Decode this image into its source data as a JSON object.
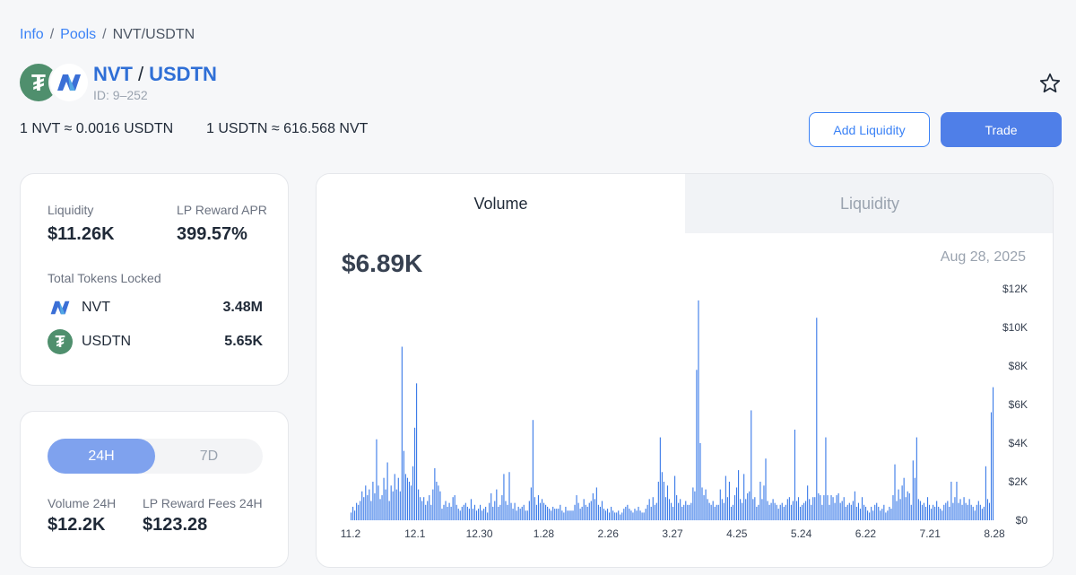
{
  "breadcrumb": {
    "info": "Info",
    "pools": "Pools",
    "current": "NVT/USDTN",
    "sep": "/"
  },
  "pair": {
    "base": "NVT",
    "quote": "USDTN",
    "slash": "/",
    "id": "ID: 9–252"
  },
  "rates": {
    "nvt_to_usdtn": "1 NVT ≈ 0.0016 USDTN",
    "usdtn_to_nvt": "1 USDTN ≈ 616.568 NVT"
  },
  "actions": {
    "add_liquidity": "Add Liquidity",
    "trade": "Trade"
  },
  "stats": {
    "liquidity_label": "Liquidity",
    "liquidity_value": "$11.26K",
    "apr_label": "LP Reward APR",
    "apr_value": "399.57%",
    "locked_label": "Total Tokens Locked",
    "tokens": [
      {
        "name": "NVT",
        "amount": "3.48M",
        "icon": "nvt-icon"
      },
      {
        "name": "USDTN",
        "amount": "5.65K",
        "icon": "usdtn-icon"
      }
    ]
  },
  "period": {
    "options": [
      "24H",
      "7D"
    ],
    "selected": "24H"
  },
  "fees": {
    "volume_label": "Volume 24H",
    "volume_value": "$12.2K",
    "fees_label": "LP Reward Fees 24H",
    "fees_value": "$123.28"
  },
  "chart_tabs": {
    "volume": "Volume",
    "liquidity": "Liquidity",
    "active": "Volume"
  },
  "colors": {
    "accent": "#3b82f6",
    "bar": "#3b7be8",
    "brand_green": "#4f8f6d"
  },
  "chart_data": {
    "type": "bar",
    "title": "Volume",
    "current_value": "$6.89K",
    "current_date": "Aug 28, 2025",
    "ylim": [
      0,
      12000
    ],
    "y_ticks": [
      "$0",
      "$2K",
      "$4K",
      "$6K",
      "$8K",
      "$10K",
      "$12K"
    ],
    "x_ticks": [
      "11.2",
      "12.1",
      "12.30",
      "1.28",
      "2.26",
      "3.27",
      "4.25",
      "5.24",
      "6.22",
      "7.21",
      "8.28"
    ],
    "values": [
      400,
      700,
      500,
      900,
      800,
      1000,
      1500,
      1200,
      1800,
      1300,
      1600,
      1000,
      2000,
      1400,
      4200,
      1800,
      1100,
      1300,
      2200,
      1600,
      3000,
      1000,
      1800,
      1500,
      2400,
      1600,
      2200,
      1500,
      9000,
      3600,
      2400,
      2200,
      2000,
      1800,
      2800,
      4800,
      7100,
      1600,
      1200,
      1000,
      1200,
      800,
      1000,
      1300,
      800,
      1600,
      2700,
      2000,
      1800,
      1500,
      600,
      800,
      1000,
      700,
      900,
      700,
      1200,
      1300,
      800,
      600,
      500,
      700,
      800,
      900,
      700,
      600,
      1100,
      600,
      800,
      500,
      600,
      800,
      500,
      600,
      700,
      400,
      900,
      1400,
      700,
      1000,
      1600,
      700,
      800,
      1300,
      2400,
      1000,
      800,
      2500,
      900,
      600,
      900,
      500,
      700,
      600,
      700,
      800,
      500,
      500,
      1000,
      1700,
      5200,
      1200,
      800,
      1300,
      900,
      1100,
      900,
      800,
      700,
      600,
      500,
      700,
      600,
      600,
      600,
      800,
      500,
      400,
      700,
      500,
      500,
      500,
      500,
      800,
      1300,
      900,
      600,
      700,
      1100,
      800,
      700,
      900,
      1000,
      1400,
      1100,
      1700,
      800,
      700,
      1000,
      600,
      500,
      600,
      400,
      700,
      500,
      400,
      400,
      500,
      300,
      400,
      600,
      700,
      800,
      600,
      500,
      400,
      600,
      500,
      700,
      500,
      400,
      400,
      600,
      800,
      1100,
      700,
      1200,
      800,
      900,
      2000,
      4300,
      2500,
      2000,
      1200,
      1800,
      1100,
      900,
      700,
      2300,
      1300,
      900,
      1100,
      700,
      800,
      1000,
      800,
      800,
      900,
      1700,
      1500,
      7800,
      11400,
      4000,
      1700,
      1300,
      1600,
      1100,
      900,
      800,
      1000,
      700,
      800,
      800,
      1600,
      1100,
      900,
      2300,
      1200,
      2000,
      700,
      800,
      1300,
      1700,
      2600,
      1100,
      900,
      2400,
      1100,
      1400,
      1500,
      5700,
      1100,
      1200,
      700,
      800,
      2000,
      1100,
      1800,
      3200,
      1000,
      800,
      900,
      1100,
      900,
      800,
      600,
      800,
      900,
      700,
      800,
      1100,
      1200,
      800,
      1000,
      4700,
      1000,
      1200,
      700,
      800,
      900,
      1000,
      1800,
      1100,
      800,
      1200,
      1200,
      10500,
      1400,
      1300,
      800,
      1300,
      4300,
      1300,
      800,
      1300,
      1200,
      900,
      1300,
      1400,
      900,
      1000,
      1200,
      700,
      800,
      900,
      800,
      1000,
      1500,
      700,
      900,
      600,
      1200,
      800,
      700,
      500,
      400,
      700,
      500,
      800,
      900,
      700,
      500,
      600,
      800,
      400,
      500,
      700,
      600,
      1300,
      2900,
      1000,
      1600,
      1100,
      1800,
      2200,
      1200,
      1500,
      1400,
      800,
      3100,
      2200,
      4300,
      1100,
      1000,
      800,
      900,
      700,
      1200,
      800,
      600,
      800,
      700,
      1000,
      700,
      600,
      500,
      800,
      900,
      1000,
      700,
      2000,
      900,
      1200,
      2000,
      900,
      1100,
      800,
      1200,
      900,
      800,
      1100,
      800,
      700,
      500,
      800,
      1000,
      800,
      600,
      700,
      2800,
      1100,
      900,
      5600,
      6900
    ]
  }
}
